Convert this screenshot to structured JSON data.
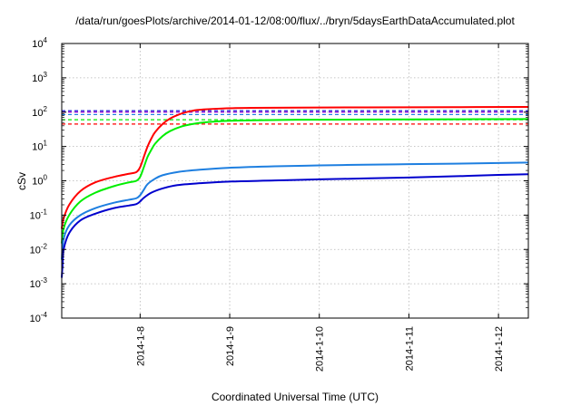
{
  "chart_data": {
    "type": "line",
    "title": "/data/run/goesPlots/archive/2014-01-12/08:00/flux/../bryn/5daysEarthDataAccumulated.plot",
    "xlabel": "Coordinated Universal Time (UTC)",
    "ylabel": "cSv",
    "y_scale": "log",
    "ylim": [
      0.0001,
      10000
    ],
    "x_unit": "days",
    "xlim": [
      "2014-01-07T03:00",
      "2014-01-12T08:00"
    ],
    "grid": true,
    "legend": "none",
    "y_ticks": [
      {
        "base": "10",
        "exp": "-4",
        "value": 0.0001
      },
      {
        "base": "10",
        "exp": "-3",
        "value": 0.001
      },
      {
        "base": "10",
        "exp": "-2",
        "value": 0.01
      },
      {
        "base": "10",
        "exp": "-1",
        "value": 0.1
      },
      {
        "base": "10",
        "exp": "0",
        "value": 1
      },
      {
        "base": "10",
        "exp": "1",
        "value": 10
      },
      {
        "base": "10",
        "exp": "2",
        "value": 100
      },
      {
        "base": "10",
        "exp": "3",
        "value": 1000
      },
      {
        "base": "10",
        "exp": "4",
        "value": 10000
      }
    ],
    "x_ticks": [
      {
        "label": "2014-1-8",
        "value": "2014-01-08"
      },
      {
        "label": "2014-1-9",
        "value": "2014-01-09"
      },
      {
        "label": "2014-1-10",
        "value": "2014-01-10"
      },
      {
        "label": "2014-1-11",
        "value": "2014-01-11"
      },
      {
        "label": "2014-1-12",
        "value": "2014-01-12"
      }
    ],
    "series": [
      {
        "color": "#ff0000",
        "x": [
          "2014-01-07T03:00",
          "2014-01-07T03:30",
          "2014-01-07T05:00",
          "2014-01-07T08:00",
          "2014-01-07T12:00",
          "2014-01-07T17:00",
          "2014-01-07T21:00",
          "2014-01-07T23:00",
          "2014-01-08T00:00",
          "2014-01-08T01:00",
          "2014-01-08T02:00",
          "2014-01-08T03:00",
          "2014-01-08T04:00",
          "2014-01-08T06:00",
          "2014-01-08T08:00",
          "2014-01-08T11:00",
          "2014-01-08T14:00",
          "2014-01-08T17:00",
          "2014-01-08T22:00",
          "2014-01-09T06:00",
          "2014-01-09T18:00",
          "2014-01-10T12:00",
          "2014-01-11T12:00",
          "2014-01-12T08:00"
        ],
        "y": [
          0.04,
          0.08,
          0.2,
          0.5,
          0.9,
          1.3,
          1.6,
          1.8,
          2.5,
          5,
          10,
          17,
          26,
          45,
          65,
          90,
          110,
          120,
          128,
          133,
          136,
          138,
          140,
          142
        ]
      },
      {
        "color": "#00ee00",
        "x": [
          "2014-01-07T03:00",
          "2014-01-07T03:30",
          "2014-01-07T05:00",
          "2014-01-07T08:00",
          "2014-01-07T12:00",
          "2014-01-07T17:00",
          "2014-01-07T21:00",
          "2014-01-07T23:00",
          "2014-01-08T00:00",
          "2014-01-08T01:00",
          "2014-01-08T02:00",
          "2014-01-08T03:00",
          "2014-01-08T04:00",
          "2014-01-08T06:00",
          "2014-01-08T08:00",
          "2014-01-08T11:00",
          "2014-01-08T14:00",
          "2014-01-08T17:00",
          "2014-01-08T22:00",
          "2014-01-09T06:00",
          "2014-01-09T18:00",
          "2014-01-10T12:00",
          "2014-01-11T12:00",
          "2014-01-12T08:00"
        ],
        "y": [
          0.015,
          0.04,
          0.1,
          0.25,
          0.45,
          0.7,
          0.9,
          1.0,
          1.3,
          2.5,
          5,
          8,
          12,
          20,
          28,
          38,
          45,
          50,
          55,
          58,
          60,
          61,
          62,
          63
        ]
      },
      {
        "color": "#1e7fe0",
        "x": [
          "2014-01-07T03:00",
          "2014-01-07T03:30",
          "2014-01-07T05:00",
          "2014-01-07T08:00",
          "2014-01-07T12:00",
          "2014-01-07T17:00",
          "2014-01-07T21:00",
          "2014-01-07T23:00",
          "2014-01-08T00:00",
          "2014-01-08T01:00",
          "2014-01-08T02:00",
          "2014-01-08T04:00",
          "2014-01-08T06:00",
          "2014-01-08T10:00",
          "2014-01-08T16:00",
          "2014-01-09T00:00",
          "2014-01-09T12:00",
          "2014-01-10T00:00",
          "2014-01-10T12:00",
          "2014-01-11T00:00",
          "2014-01-11T12:00",
          "2014-01-12T00:00",
          "2014-01-12T08:00"
        ],
        "y": [
          0.005,
          0.02,
          0.05,
          0.1,
          0.16,
          0.23,
          0.28,
          0.31,
          0.38,
          0.55,
          0.8,
          1.15,
          1.45,
          1.8,
          2.1,
          2.4,
          2.65,
          2.8,
          2.95,
          3.05,
          3.15,
          3.3,
          3.4
        ]
      },
      {
        "color": "#0000cd",
        "x": [
          "2014-01-07T03:00",
          "2014-01-07T03:15",
          "2014-01-07T03:30",
          "2014-01-07T05:00",
          "2014-01-07T08:00",
          "2014-01-07T12:00",
          "2014-01-07T17:00",
          "2014-01-07T21:00",
          "2014-01-07T23:00",
          "2014-01-08T00:00",
          "2014-01-08T01:00",
          "2014-01-08T03:00",
          "2014-01-08T06:00",
          "2014-01-08T10:00",
          "2014-01-08T16:00",
          "2014-01-09T00:00",
          "2014-01-09T12:00",
          "2014-01-10T00:00",
          "2014-01-10T12:00",
          "2014-01-11T00:00",
          "2014-01-11T12:00",
          "2014-01-12T00:00",
          "2014-01-12T08:00"
        ],
        "y": [
          0.0015,
          0.004,
          0.01,
          0.03,
          0.07,
          0.11,
          0.16,
          0.19,
          0.21,
          0.25,
          0.32,
          0.45,
          0.6,
          0.75,
          0.85,
          0.95,
          1.02,
          1.1,
          1.17,
          1.25,
          1.35,
          1.48,
          1.55
        ]
      }
    ],
    "reference_lines": [
      {
        "color": "#0000cd",
        "y": 110
      },
      {
        "color": "#9400d3",
        "y": 100
      },
      {
        "color": "#1e7fe0",
        "y": 85
      },
      {
        "color": "#00ee00",
        "y": 60
      },
      {
        "color": "#ff0000",
        "y": 45
      }
    ]
  }
}
